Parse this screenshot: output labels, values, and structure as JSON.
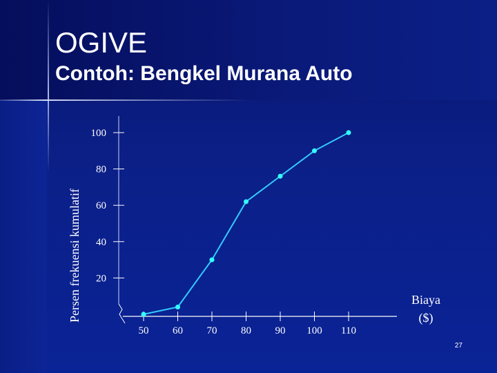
{
  "slide": {
    "title": "OGIVE",
    "subtitle": "Contoh: Bengkel Murana Auto",
    "page_number": "27"
  },
  "colors": {
    "background": "#0a1a78",
    "line": "#33ccff",
    "marker": "#33ffff",
    "text": "#ffffff"
  },
  "chart_data": {
    "type": "line",
    "title": "",
    "xlabel": "Biaya ($)",
    "xlabel_lines": [
      "Biaya",
      "($)"
    ],
    "ylabel": "Persen frekuensi kumulatif",
    "x_ticks": [
      50,
      60,
      70,
      80,
      90,
      100,
      110
    ],
    "y_ticks": [
      20,
      40,
      60,
      80,
      100
    ],
    "xlim": [
      50,
      120
    ],
    "ylim": [
      0,
      100
    ],
    "axis_break": true,
    "grid": false,
    "series": [
      {
        "x": [
          50,
          60,
          70,
          80,
          90,
          100,
          110
        ],
        "y": [
          0,
          4,
          30,
          62,
          76,
          90,
          100
        ]
      }
    ]
  }
}
